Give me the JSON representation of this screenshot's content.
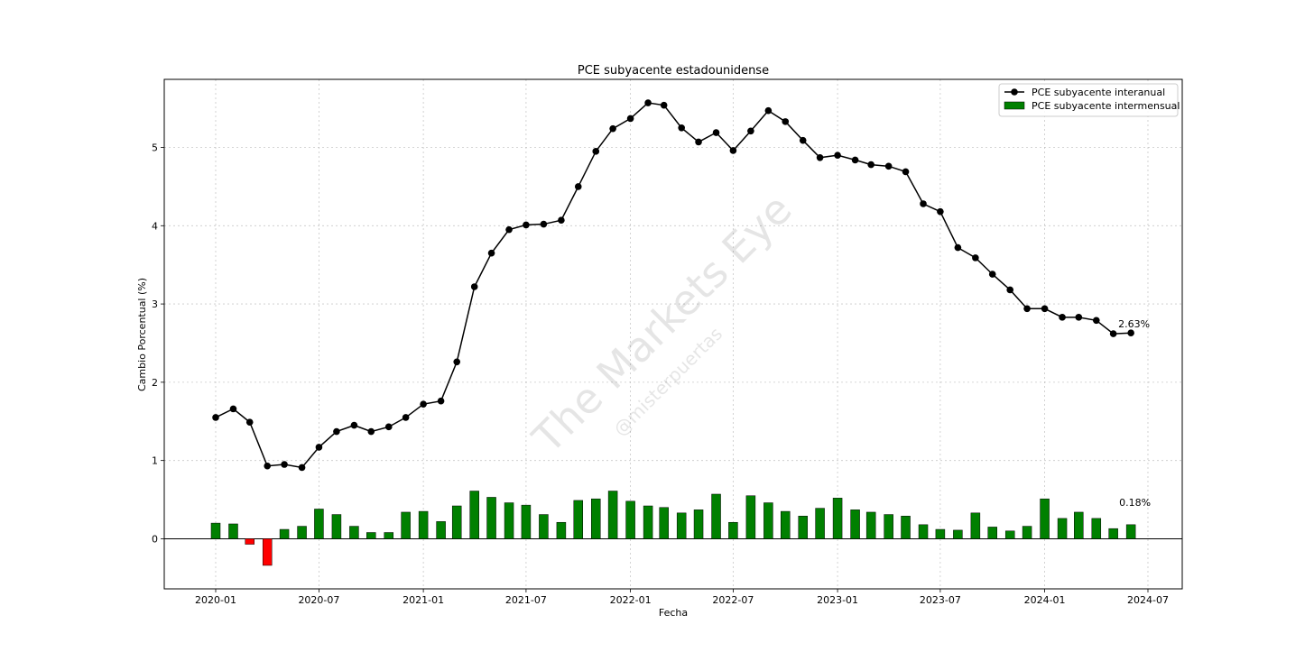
{
  "chart_data": {
    "type": "bar+line",
    "title": "PCE subyacente estadounidense",
    "xlabel": "Fecha",
    "ylabel": "Cambio Porcentual (%)",
    "ylim": [
      -0.64,
      5.87
    ],
    "yticks": [
      0,
      1,
      2,
      3,
      4,
      5
    ],
    "xticks": [
      "2020-01",
      "2020-07",
      "2021-01",
      "2021-07",
      "2022-01",
      "2022-07",
      "2023-01",
      "2023-07",
      "2024-01",
      "2024-07"
    ],
    "grid": true,
    "legend_position": "top-right",
    "dates": [
      "2020-01",
      "2020-02",
      "2020-03",
      "2020-04",
      "2020-05",
      "2020-06",
      "2020-07",
      "2020-08",
      "2020-09",
      "2020-10",
      "2020-11",
      "2020-12",
      "2021-01",
      "2021-02",
      "2021-03",
      "2021-04",
      "2021-05",
      "2021-06",
      "2021-07",
      "2021-08",
      "2021-09",
      "2021-10",
      "2021-11",
      "2021-12",
      "2022-01",
      "2022-02",
      "2022-03",
      "2022-04",
      "2022-05",
      "2022-06",
      "2022-07",
      "2022-08",
      "2022-09",
      "2022-10",
      "2022-11",
      "2022-12",
      "2023-01",
      "2023-02",
      "2023-03",
      "2023-04",
      "2023-05",
      "2023-06",
      "2023-07",
      "2023-08",
      "2023-09",
      "2023-10",
      "2023-11",
      "2023-12",
      "2024-01",
      "2024-02",
      "2024-03",
      "2024-04",
      "2024-05",
      "2024-06"
    ],
    "series": [
      {
        "name": "PCE subyacente interanual",
        "kind": "line",
        "color": "#000000",
        "values": [
          1.55,
          1.66,
          1.49,
          0.93,
          0.95,
          0.91,
          1.17,
          1.37,
          1.45,
          1.37,
          1.43,
          1.55,
          1.72,
          1.76,
          2.26,
          3.22,
          3.65,
          3.95,
          4.01,
          4.02,
          4.07,
          4.5,
          4.95,
          5.24,
          5.37,
          5.57,
          5.54,
          5.25,
          5.07,
          5.19,
          4.96,
          5.21,
          5.47,
          5.33,
          5.09,
          4.87,
          4.9,
          4.84,
          4.78,
          4.76,
          4.69,
          4.28,
          4.18,
          3.72,
          3.59,
          3.38,
          3.18,
          2.94,
          2.94,
          2.83,
          2.83,
          2.79,
          2.62,
          2.63
        ]
      },
      {
        "name": "PCE subyacente intermensual",
        "kind": "bar",
        "color": "#008000",
        "negative_color": "#ff0000",
        "values": [
          0.2,
          0.19,
          -0.07,
          -0.34,
          0.12,
          0.16,
          0.38,
          0.31,
          0.16,
          0.08,
          0.08,
          0.34,
          0.35,
          0.22,
          0.42,
          0.61,
          0.53,
          0.46,
          0.43,
          0.31,
          0.21,
          0.49,
          0.51,
          0.61,
          0.48,
          0.42,
          0.4,
          0.33,
          0.37,
          0.57,
          0.21,
          0.55,
          0.46,
          0.35,
          0.29,
          0.39,
          0.52,
          0.37,
          0.34,
          0.31,
          0.29,
          0.18,
          0.12,
          0.11,
          0.33,
          0.15,
          0.1,
          0.16,
          0.51,
          0.26,
          0.34,
          0.26,
          0.13,
          0.18
        ]
      }
    ],
    "annotations": [
      {
        "text": "2.63%",
        "series": "PCE subyacente interanual"
      },
      {
        "text": "0.18%",
        "series": "PCE subyacente intermensual"
      }
    ],
    "watermark": [
      "The Markets Eye",
      "@misterpuertas"
    ]
  }
}
